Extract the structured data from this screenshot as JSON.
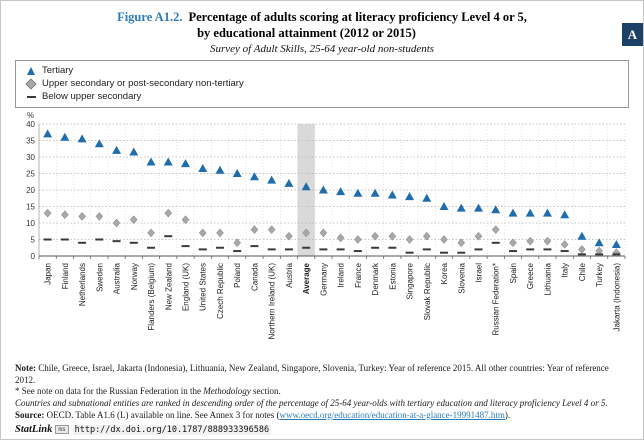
{
  "chapter_tab": "A",
  "header": {
    "figure_label": "Figure A1.2.",
    "title_line1": "Percentage of adults scoring at literacy proficiency Level 4 or 5,",
    "title_line2": "by educational attainment (2012 or 2015)",
    "subtitle": "Survey of Adult Skills, 25-64 year-old non-students"
  },
  "legend": {
    "items": [
      {
        "label": "Tertiary",
        "marker": "triangle",
        "color": "#1f6dad"
      },
      {
        "label": "Upper secondary or post-secondary non-tertiary",
        "marker": "diamond",
        "color": "#a8a8a8"
      },
      {
        "label": "Below upper secondary",
        "marker": "dash",
        "color": "#3a3a3a"
      }
    ]
  },
  "chart_data": {
    "type": "scatter",
    "title": "Percentage of adults scoring at literacy proficiency Level 4 or 5, by educational attainment (2012 or 2015)",
    "xlabel": "",
    "ylabel": "%",
    "ylim": [
      0,
      40
    ],
    "ytick_step": 5,
    "grid": true,
    "legend_position": "top",
    "highlight_category": "Average",
    "highlight_color": "#d9d9d9",
    "categories": [
      "Japan",
      "Finland",
      "Netherlands",
      "Sweden",
      "Australia",
      "Norway",
      "Flanders (Belgium)",
      "New Zealand",
      "England (UK)",
      "United States",
      "Czech Republic",
      "Poland",
      "Canada",
      "Northern Ireland (UK)",
      "Austria",
      "Average",
      "Germany",
      "Ireland",
      "France",
      "Denmark",
      "Estonia",
      "Singapore",
      "Slovak Republic",
      "Korea",
      "Slovenia",
      "Israel",
      "Russian Federation*",
      "Spain",
      "Greece",
      "Lithuania",
      "Italy",
      "Chile",
      "Turkey",
      "Jakarta (Indonesia)"
    ],
    "series": [
      {
        "name": "Tertiary",
        "marker": "triangle",
        "color": "#1f6dad",
        "values": [
          37,
          36,
          35.5,
          34,
          32,
          31.5,
          28.5,
          28.5,
          28,
          26.5,
          26,
          25,
          24,
          23,
          22,
          21,
          20,
          19.5,
          19,
          19,
          18.5,
          18,
          17.5,
          15,
          14.5,
          14.5,
          14,
          13,
          13,
          13,
          12.5,
          6,
          4,
          3.5
        ]
      },
      {
        "name": "Upper secondary or post-secondary non-tertiary",
        "marker": "diamond",
        "color": "#a8a8a8",
        "values": [
          13,
          12.5,
          12,
          12,
          10,
          11,
          7,
          13,
          11,
          7,
          7,
          4,
          8,
          8,
          6,
          7,
          7,
          5.5,
          5,
          6,
          6,
          5,
          6,
          5,
          4,
          6,
          8,
          4,
          4.5,
          4.5,
          3.5,
          2,
          1.5,
          1
        ]
      },
      {
        "name": "Below upper secondary",
        "marker": "dash",
        "color": "#3a3a3a",
        "values": [
          5,
          5,
          4,
          5,
          4.5,
          4,
          2.5,
          6,
          3,
          2,
          2.5,
          1.5,
          3,
          2,
          2,
          2.5,
          2,
          2,
          1.5,
          2.5,
          2.5,
          1,
          2,
          1,
          1,
          2,
          4,
          1.5,
          2,
          2,
          1.5,
          0.5,
          0.5,
          0.5
        ]
      }
    ]
  },
  "notes": {
    "note_label": "Note:",
    "note_text": " Chile, Greece, Israel, Jakarta (Indonesia), Lithuania, New Zealand, Singapore, Slovenia, Turkey: Year of reference 2015. All other countries: Year of reference 2012.",
    "footnote_pre": "* See note on data for the Russian Federation in the ",
    "footnote_italic": "Methodology",
    "footnote_post": " section.",
    "ranking_note": "Countries and subnational entities are ranked in descending order of the percentage of 25-64 year-olds with tertiary education and literacy proficiency Level 4 or 5.",
    "source_label": "Source:",
    "source_pre": " OECD. Table A1.6 (L) available on line. See Annex 3 for notes (",
    "source_link": "www.oecd.org/education/education-at-a-glance-19991487.htm",
    "source_post": ")."
  },
  "statlink": {
    "label": "StatLink",
    "icon": "ms",
    "url": "http://dx.doi.org/10.1787/888933396586"
  }
}
